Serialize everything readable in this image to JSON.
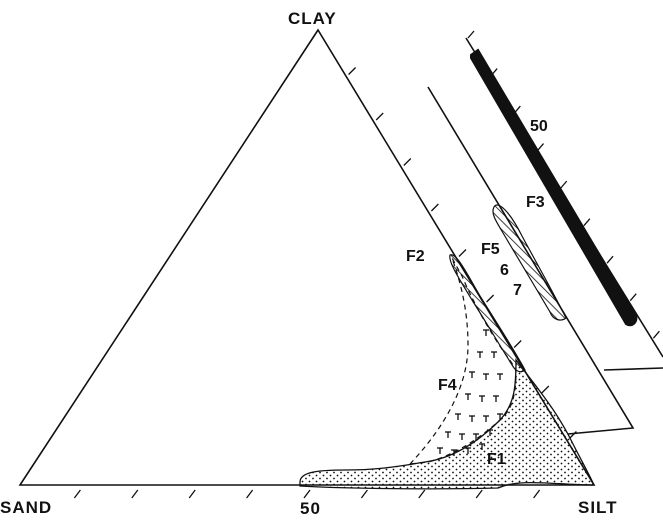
{
  "diagram": {
    "vertex_labels": {
      "top": "CLAY",
      "bottom_left": "SAND",
      "bottom_right": "SILT"
    },
    "axis_labels": {
      "base_mid": "50",
      "back_panel": "50"
    },
    "field_labels": {
      "f1": "F1",
      "f2": "F2",
      "f3": "F3",
      "f4": "F4",
      "f5": "F5",
      "f6": "6",
      "f7": "7"
    },
    "colors": {
      "ink": "#111111",
      "background": "#ffffff"
    }
  }
}
